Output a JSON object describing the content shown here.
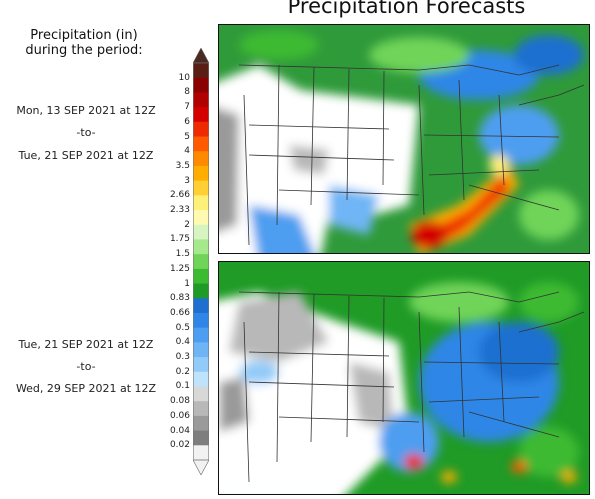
{
  "title": "Precipitation Forecasts",
  "legend": {
    "heading_line1": "Precipitation (in)",
    "heading_line2": "during the period:",
    "ticks": [
      "10",
      "8",
      "7",
      "6",
      "5",
      "4",
      "3.5",
      "3",
      "2.66",
      "2.33",
      "2",
      "1.75",
      "1.5",
      "1.25",
      "1",
      "0.83",
      "0.66",
      "0.5",
      "0.4",
      "0.3",
      "0.2",
      "0.1",
      "0.08",
      "0.06",
      "0.04",
      "0.02"
    ],
    "colors": [
      "#5a1f14",
      "#8b0000",
      "#b00000",
      "#d40000",
      "#ee2a00",
      "#ff5a00",
      "#ff8a00",
      "#ffad00",
      "#ffcf33",
      "#fff07a",
      "#fffab0",
      "#d6f5c0",
      "#a6e88c",
      "#6fd458",
      "#3cba32",
      "#1e9b26",
      "#1f6fd0",
      "#2f86e6",
      "#4d9ef0",
      "#6fb5f5",
      "#93cbf8",
      "#bfe3fb",
      "#d8d8d8",
      "#b8b8b8",
      "#9a9a9a",
      "#7e7e7e",
      "#f2f2f2"
    ],
    "top_arrow_color": "#4a2a20",
    "bottom_arrow_color": "#f2f2f2"
  },
  "periods": [
    {
      "start": "Mon, 13 SEP 2021 at 12Z",
      "sep": "-to-",
      "end": "Tue, 21 SEP 2021 at 12Z"
    },
    {
      "start": "Tue, 21 SEP 2021 at 12Z",
      "sep": "-to-",
      "end": "Wed, 29 SEP 2021 at 12Z"
    }
  ]
}
